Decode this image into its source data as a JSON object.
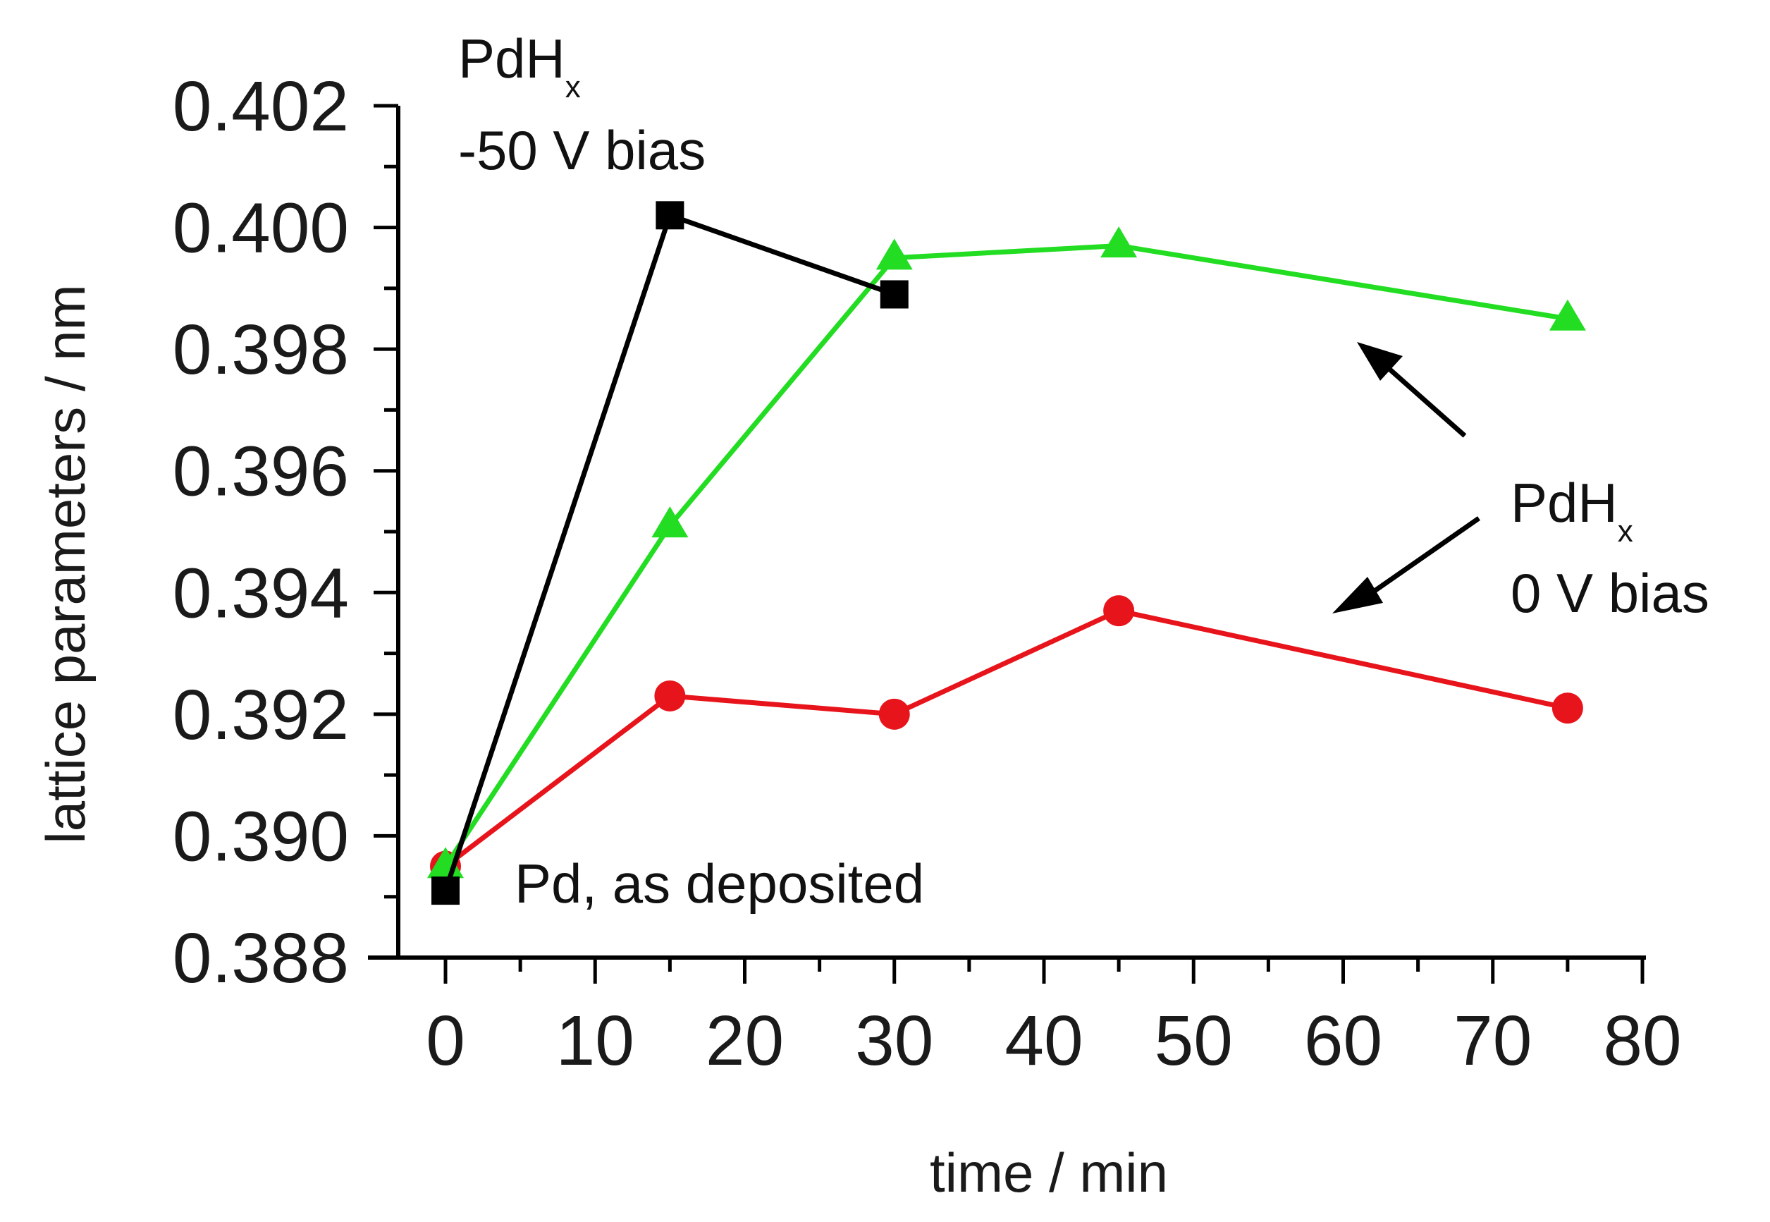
{
  "chart_data": {
    "type": "line",
    "title": "",
    "xlabel": "time / min",
    "ylabel": "lattice parameters / nm",
    "xlim": [
      -5,
      80
    ],
    "ylim": [
      0.388,
      0.4025
    ],
    "x_major_ticks": [
      0,
      10,
      20,
      30,
      40,
      50,
      60,
      70,
      80
    ],
    "x_tick_labels": [
      "0",
      "10",
      "20",
      "30",
      "40",
      "50",
      "60",
      "70",
      "80"
    ],
    "y_major_ticks": [
      0.388,
      0.39,
      0.392,
      0.394,
      0.396,
      0.398,
      0.4,
      0.402
    ],
    "y_tick_labels": [
      "0.388",
      "0.390",
      "0.392",
      "0.394",
      "0.396",
      "0.398",
      "0.400",
      "0.402"
    ],
    "grid": false,
    "series": [
      {
        "name": "PdHx -50 V bias",
        "color": "#000000",
        "marker": "square",
        "x": [
          0,
          15,
          30
        ],
        "y": [
          0.3891,
          0.4002,
          0.3989
        ]
      },
      {
        "name": "PdHx 0 V bias (upper)",
        "color": "#22dd22",
        "marker": "triangle",
        "x": [
          0,
          15,
          30,
          45,
          75
        ],
        "y": [
          0.3895,
          0.3951,
          0.3995,
          0.3997,
          0.3985
        ]
      },
      {
        "name": "PdHx 0 V bias (lower)",
        "color": "#e8141b",
        "marker": "circle",
        "x": [
          0,
          15,
          30,
          45,
          75
        ],
        "y": [
          0.3895,
          0.3923,
          0.392,
          0.3937,
          0.3921
        ]
      }
    ],
    "annotations": {
      "top_left": {
        "main": "PdH",
        "sub": "x",
        "line2": "-50 V bias"
      },
      "right": {
        "main": "PdH",
        "sub": "x",
        "line2": "0 V bias"
      },
      "bottom": {
        "text": "Pd, as deposited"
      }
    }
  }
}
